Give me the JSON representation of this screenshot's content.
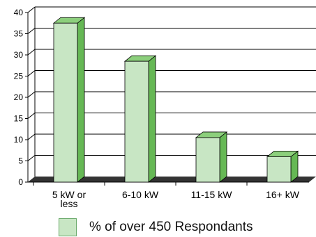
{
  "chart_data": {
    "type": "bar",
    "style": "3d-column",
    "categories": [
      "5 kW or less",
      "6-10 kW",
      "11-15 kW",
      "16+ kW"
    ],
    "series": [
      {
        "name": "% of over 450 Respondants",
        "values": [
          37.5,
          28.5,
          10.5,
          6
        ]
      }
    ],
    "ylim": [
      0,
      40
    ],
    "yticks": [
      0,
      5,
      10,
      15,
      20,
      25,
      30,
      35,
      40
    ],
    "grid": true,
    "legend_position": "bottom",
    "colors": {
      "bar_front": "#c8e6c4",
      "bar_side": "#66b855",
      "bar_top": "#8ccf7c",
      "floor": "#333333",
      "grid": "#000000"
    },
    "legend": {
      "label": "% of over 450 Respondants"
    }
  }
}
